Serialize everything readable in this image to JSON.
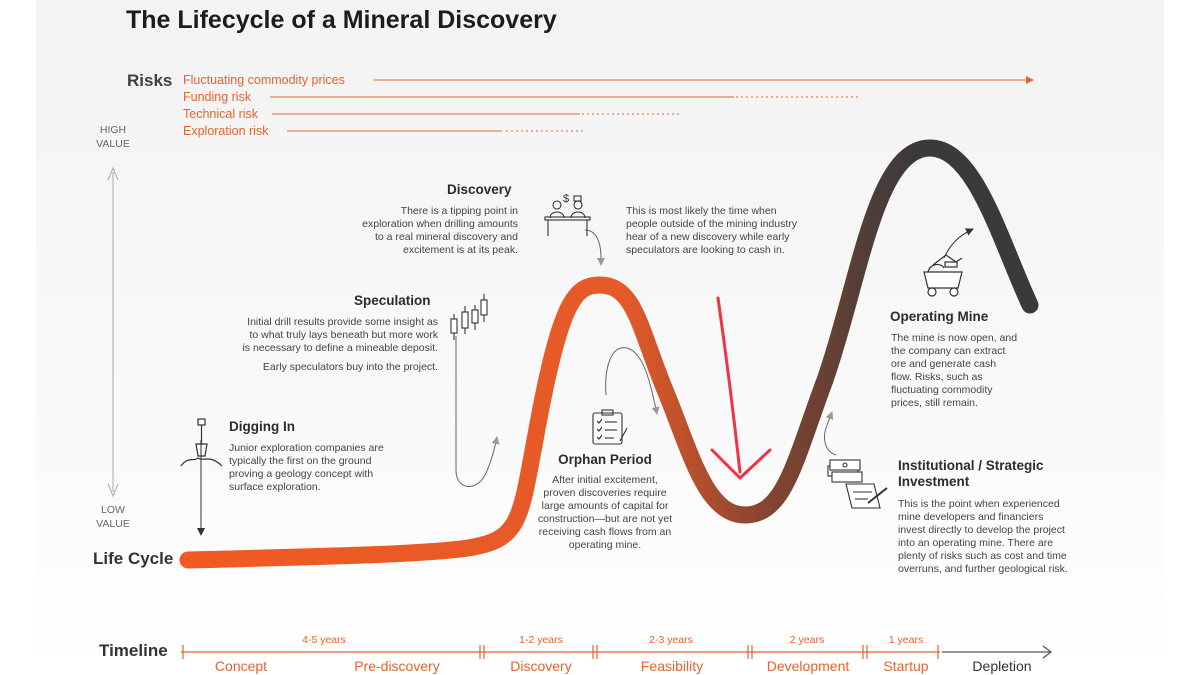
{
  "title": "The Lifecycle of a Mineral Discovery",
  "risks": {
    "label": "Risks",
    "items": [
      "Fluctuating commodity prices",
      "Funding risk",
      "Technical risk",
      "Exploration risk"
    ]
  },
  "value_axis": {
    "high": [
      "HIGH",
      "VALUE"
    ],
    "low": [
      "LOW",
      "VALUE"
    ]
  },
  "lifecycle_label": "Life Cycle",
  "stages": {
    "discovery": {
      "heading": "Discovery",
      "body": [
        "There is a tipping point in",
        "exploration when drilling amounts",
        "to a real mineral discovery and",
        "excitement is at its peak."
      ],
      "aside": [
        "This is most likely the time when",
        "people outside of the mining industry",
        "hear of a new discovery while early",
        "speculators are looking to cash in."
      ]
    },
    "speculation": {
      "heading": "Speculation",
      "body": [
        "Initial drill results provide some insight as",
        "to what truly lays beneath but more work",
        "is necessary to define a mineable deposit."
      ],
      "note": "Early speculators buy into the project."
    },
    "digging_in": {
      "heading": "Digging In",
      "body": [
        "Junior exploration companies are",
        "typically the first on the ground",
        "proving a geology concept with",
        "surface exploration."
      ]
    },
    "orphan_period": {
      "heading": "Orphan Period",
      "body": [
        "After initial excitement,",
        "proven discoveries require",
        "large amounts of capital for",
        "construction—but are not yet",
        "receiving cash flows from an",
        "operating mine."
      ]
    },
    "operating_mine": {
      "heading": "Operating Mine",
      "body": [
        "The mine is now open, and",
        "the company can extract",
        "ore and generate cash",
        "flow. Risks, such as",
        "fluctuating commodity",
        "prices, still remain."
      ]
    },
    "institutional": {
      "heading": [
        "Institutional / Strategic",
        "Investment"
      ],
      "body": [
        "This is the point when experienced",
        "mine developers and financiers",
        "invest directly to develop the project",
        "into an operating mine. There are",
        "plenty of risks such as cost and time",
        "overruns, and further geological risk."
      ]
    }
  },
  "timeline": {
    "label": "Timeline",
    "years": [
      "4-5 years",
      "1-2 years",
      "2-3 years",
      "2 years",
      "1 years"
    ],
    "phases": [
      "Concept",
      "Pre-discovery",
      "Discovery",
      "Feasibility",
      "Development",
      "Startup",
      "Depletion"
    ]
  },
  "colors": {
    "accent": "#e8622b",
    "curve_start": "#f15a22",
    "curve_end": "#3a3a3a",
    "annotation_red": "#ee3344"
  }
}
